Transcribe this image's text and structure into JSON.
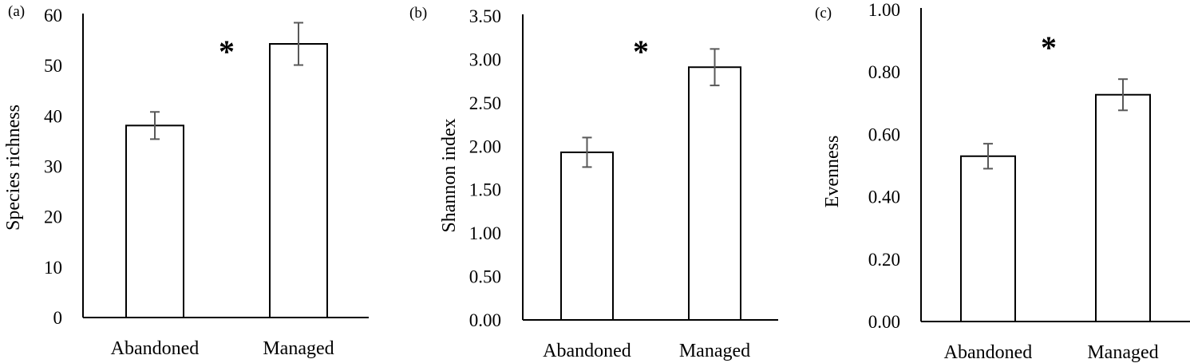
{
  "chart_data": [
    {
      "type": "bar",
      "panel_label": "(a)",
      "title": "",
      "xlabel": "",
      "ylabel": "Species richness",
      "categories": [
        "Abandoned",
        "Managed"
      ],
      "values": [
        38.1,
        54.3
      ],
      "errors": [
        2.7,
        4.2
      ],
      "ylim": [
        0,
        60
      ],
      "yticks": [
        "0",
        "10",
        "20",
        "30",
        "40",
        "50",
        "60"
      ],
      "annotation": "*",
      "grid": false
    },
    {
      "type": "bar",
      "panel_label": "(b)",
      "title": "",
      "xlabel": "",
      "ylabel": "Shannon index",
      "categories": [
        "Abandoned",
        "Managed"
      ],
      "values": [
        1.93,
        2.91
      ],
      "errors": [
        0.17,
        0.21
      ],
      "ylim": [
        0,
        3.5
      ],
      "yticks": [
        "0.00",
        "0.50",
        "1.00",
        "1.50",
        "2.00",
        "2.50",
        "3.00",
        "3.50"
      ],
      "annotation": "*",
      "grid": false
    },
    {
      "type": "bar",
      "panel_label": "(c)",
      "title": "",
      "xlabel": "",
      "ylabel": "Evenness",
      "categories": [
        "Abandoned",
        "Managed"
      ],
      "values": [
        0.53,
        0.727
      ],
      "errors": [
        0.04,
        0.05
      ],
      "ylim": [
        0,
        1.0
      ],
      "yticks": [
        "0.00",
        "0.20",
        "0.40",
        "0.60",
        "0.80",
        "1.00"
      ],
      "annotation": "*",
      "grid": false
    }
  ],
  "colors": {
    "bar_fill": "#ffffff",
    "bar_stroke": "#000000",
    "error_bar": "#595959",
    "axis": "#000000"
  }
}
